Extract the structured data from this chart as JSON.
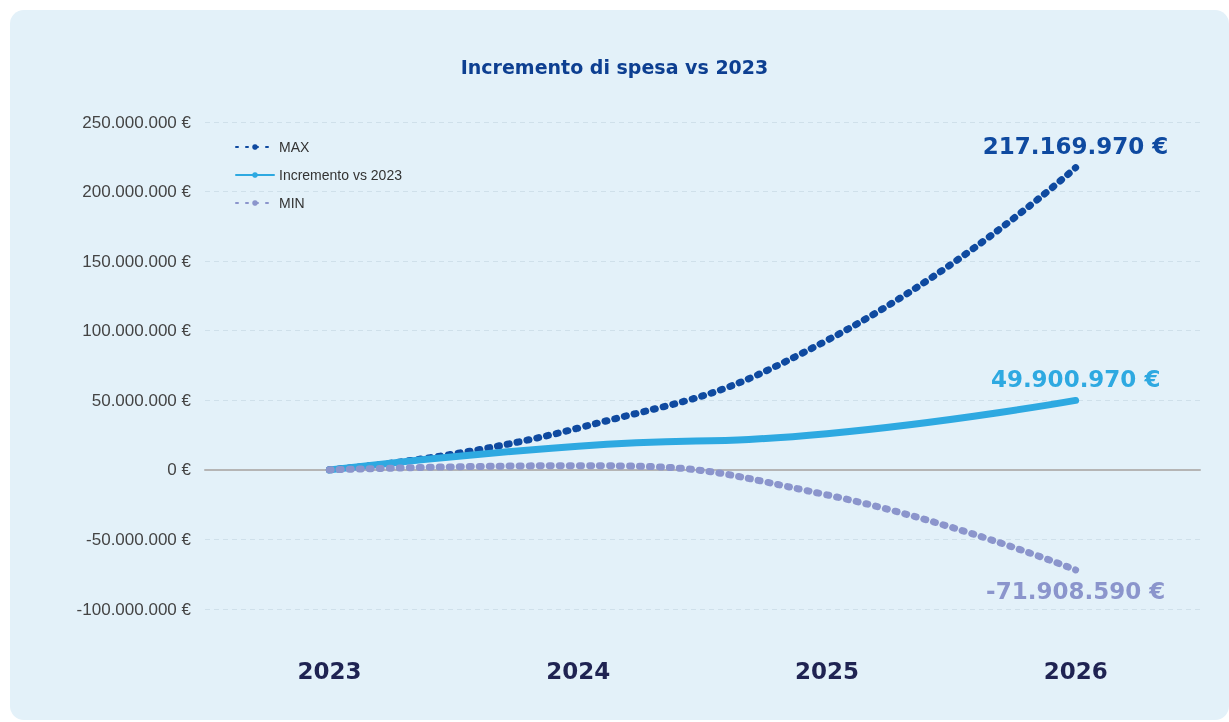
{
  "chart_data": {
    "type": "line",
    "title": "Incremento di spesa vs 2023",
    "categories": [
      "2023",
      "2024",
      "2025",
      "2026"
    ],
    "series": [
      {
        "name": "MAX",
        "color": "#0f4aa0",
        "line_style": "dotted",
        "values": [
          0,
          30000000,
          93000000,
          217169970
        ],
        "value_labels": [
          null,
          null,
          null,
          "217.169.970 €"
        ]
      },
      {
        "name": "Incremento vs 2023",
        "color": "#2ea9e1",
        "line_style": "solid",
        "values": [
          0,
          17000000,
          26000000,
          49900970
        ],
        "value_labels": [
          null,
          null,
          null,
          "49.900.970 €"
        ]
      },
      {
        "name": "MIN",
        "color": "#8b95cc",
        "line_style": "dotted",
        "values": [
          0,
          3000000,
          -18000000,
          -71908590
        ],
        "value_labels": [
          null,
          null,
          null,
          "-71.908.590 €"
        ]
      }
    ],
    "ylim": [
      -100000000,
      250000000
    ],
    "yticks": [
      {
        "value": -100000000,
        "label": "-100.000.000 €"
      },
      {
        "value": -50000000,
        "label": "-50.000.000 €"
      },
      {
        "value": 0,
        "label": "0 €"
      },
      {
        "value": 50000000,
        "label": "50.000.000 €"
      },
      {
        "value": 100000000,
        "label": "100.000.000 €"
      },
      {
        "value": 150000000,
        "label": "150.000.000 €"
      },
      {
        "value": 200000000,
        "label": "200.000.000 €"
      },
      {
        "value": 250000000,
        "label": "250.000.000 €"
      }
    ],
    "grid": "y",
    "legend": "top left",
    "marker": "none"
  }
}
